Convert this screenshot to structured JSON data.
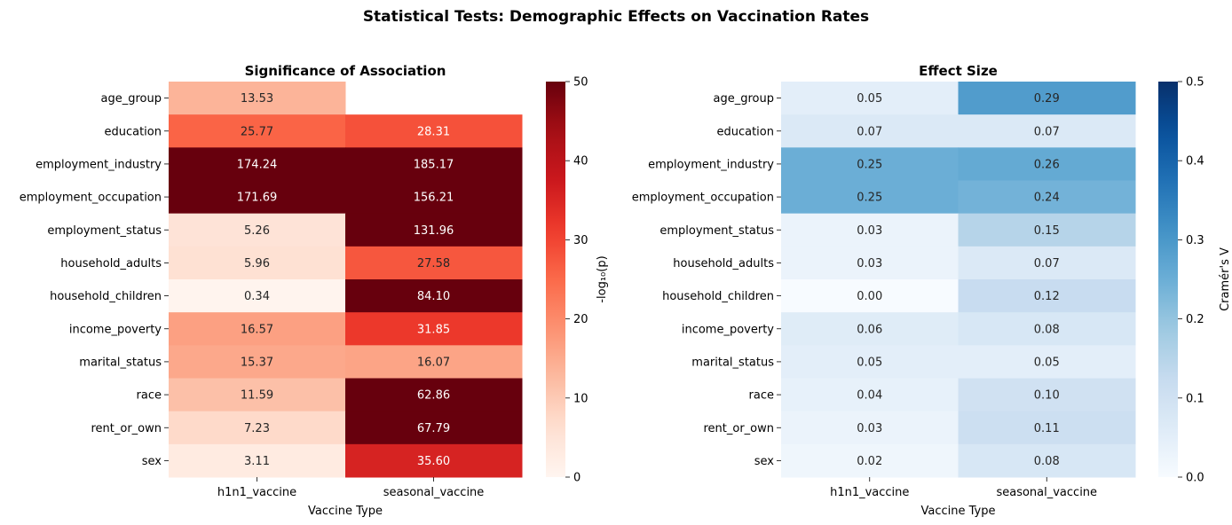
{
  "suptitle": "Statistical Tests: Demographic Effects on Vaccination Rates",
  "chart_data": [
    {
      "type": "heatmap",
      "title": "Significance of Association",
      "xlabel": "Vaccine Type",
      "ylabel": "",
      "colorbar_label": "-log₁₀(p)",
      "colormap": "Reds",
      "vmin": 0,
      "vmax": 50,
      "colorbar_ticks": [
        "0",
        "10",
        "20",
        "30",
        "40",
        "50"
      ],
      "columns": [
        "h1n1_vaccine",
        "seasonal_vaccine"
      ],
      "rows": [
        "age_group",
        "education",
        "employment_industry",
        "employment_occupation",
        "employment_status",
        "household_adults",
        "household_children",
        "income_poverty",
        "marital_status",
        "race",
        "rent_or_own",
        "sex"
      ],
      "values": [
        [
          13.53,
          null
        ],
        [
          25.77,
          28.31
        ],
        [
          174.24,
          185.17
        ],
        [
          171.69,
          156.21
        ],
        [
          5.26,
          131.96
        ],
        [
          5.96,
          27.58
        ],
        [
          0.34,
          84.1
        ],
        [
          16.57,
          31.85
        ],
        [
          15.37,
          16.07
        ],
        [
          11.59,
          62.86
        ],
        [
          7.23,
          67.79
        ],
        [
          3.11,
          35.6
        ]
      ]
    },
    {
      "type": "heatmap",
      "title": "Effect Size",
      "xlabel": "Vaccine Type",
      "ylabel": "",
      "colorbar_label": "Cramér's V",
      "colormap": "Blues",
      "vmin": 0,
      "vmax": 0.5,
      "colorbar_ticks": [
        "0.0",
        "0.1",
        "0.2",
        "0.3",
        "0.4",
        "0.5"
      ],
      "columns": [
        "h1n1_vaccine",
        "seasonal_vaccine"
      ],
      "rows": [
        "age_group",
        "education",
        "employment_industry",
        "employment_occupation",
        "employment_status",
        "household_adults",
        "household_children",
        "income_poverty",
        "marital_status",
        "race",
        "rent_or_own",
        "sex"
      ],
      "values": [
        [
          0.05,
          0.29
        ],
        [
          0.07,
          0.07
        ],
        [
          0.25,
          0.26
        ],
        [
          0.25,
          0.24
        ],
        [
          0.03,
          0.15
        ],
        [
          0.03,
          0.07
        ],
        [
          0.0,
          0.12
        ],
        [
          0.06,
          0.08
        ],
        [
          0.05,
          0.05
        ],
        [
          0.04,
          0.1
        ],
        [
          0.03,
          0.11
        ],
        [
          0.02,
          0.08
        ]
      ]
    }
  ]
}
